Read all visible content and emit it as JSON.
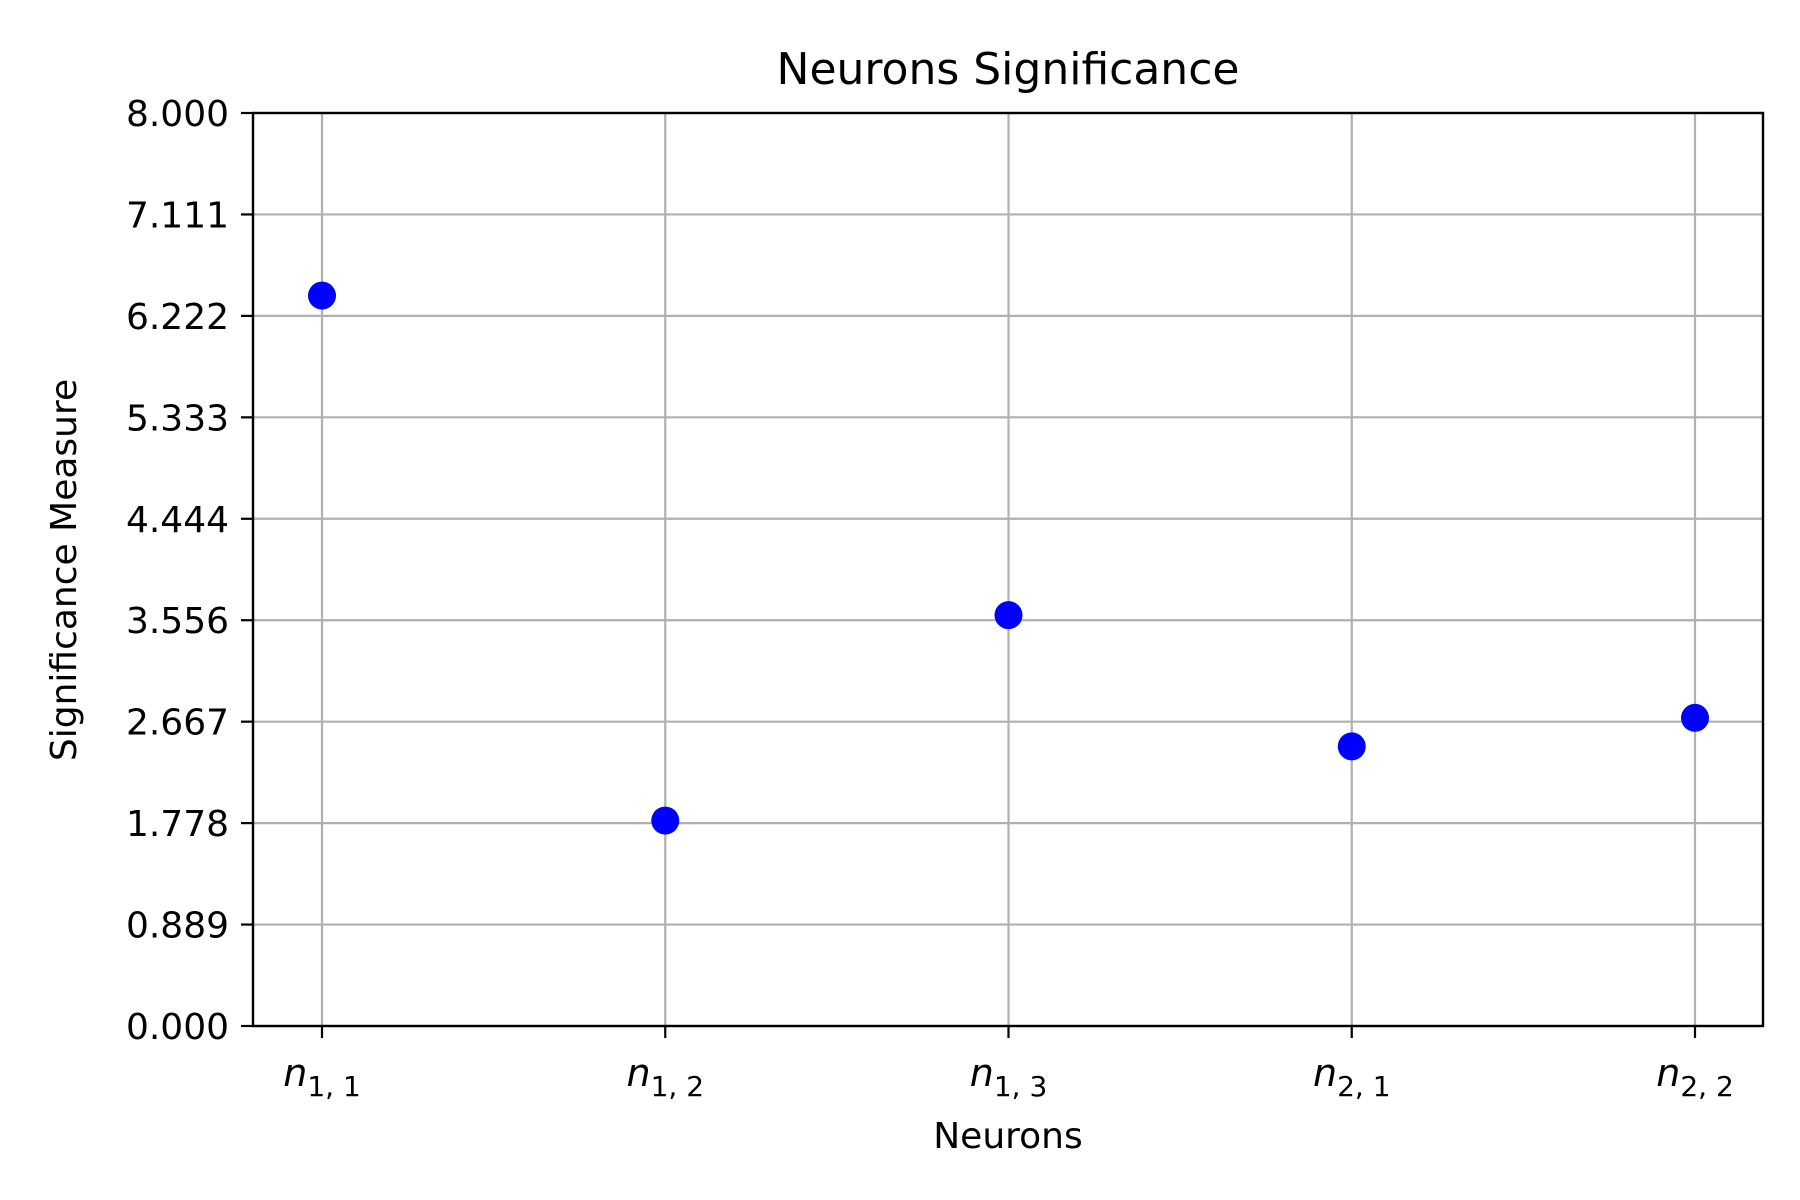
{
  "chart_data": {
    "type": "scatter",
    "title": "Neurons Significance",
    "xlabel": "Neurons",
    "ylabel": "Significance Measure",
    "categories": [
      {
        "base": "n",
        "sub": "1, 1"
      },
      {
        "base": "n",
        "sub": "1, 2"
      },
      {
        "base": "n",
        "sub": "1, 3"
      },
      {
        "base": "n",
        "sub": "2, 1"
      },
      {
        "base": "n",
        "sub": "2, 2"
      }
    ],
    "values": [
      6.4,
      1.8,
      3.6,
      2.45,
      2.7
    ],
    "ylim": [
      0,
      8
    ],
    "yticks": [
      "0.000",
      "0.889",
      "1.778",
      "2.667",
      "3.556",
      "4.444",
      "5.333",
      "6.222",
      "7.111",
      "8.000"
    ],
    "grid": true,
    "colors": {
      "point": "#0000ff",
      "grid": "#b0b0b0",
      "axis": "#000000"
    }
  }
}
